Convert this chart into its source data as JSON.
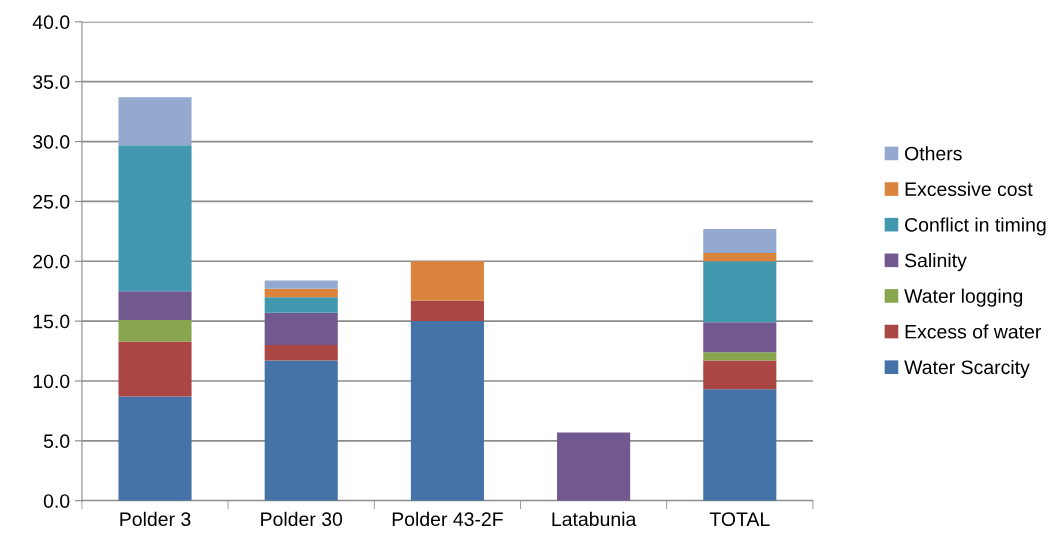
{
  "chart_data": {
    "type": "bar",
    "stacked": true,
    "categories": [
      "Polder 3",
      "Polder 30",
      "Polder 43-2F",
      "Latabunia",
      "TOTAL"
    ],
    "series": [
      {
        "name": "Water Scarcity",
        "color": "#4572a7",
        "values": [
          8.7,
          11.7,
          15.0,
          0,
          9.3
        ]
      },
      {
        "name": "Excess of water",
        "color": "#aa4643",
        "values": [
          4.6,
          1.3,
          1.7,
          0,
          2.4
        ]
      },
      {
        "name": "Water logging",
        "color": "#89a54e",
        "values": [
          1.8,
          0,
          0,
          0,
          0.7
        ]
      },
      {
        "name": "Salinity",
        "color": "#71588f",
        "values": [
          2.4,
          2.7,
          0,
          5.7,
          2.5
        ]
      },
      {
        "name": "Conflict in timing",
        "color": "#4198af",
        "values": [
          12.2,
          1.3,
          0,
          0,
          5.1
        ]
      },
      {
        "name": "Excessive cost",
        "color": "#db843d",
        "values": [
          0,
          0.7,
          3.3,
          0,
          0.7
        ]
      },
      {
        "name": "Others",
        "color": "#93a9cf",
        "values": [
          4.0,
          0.7,
          0,
          0,
          2.0
        ]
      }
    ],
    "ylim": [
      0,
      40
    ],
    "yticks": [
      {
        "value": 0,
        "label": "0.0"
      },
      {
        "value": 5,
        "label": "5.0"
      },
      {
        "value": 10,
        "label": "10.0"
      },
      {
        "value": 15,
        "label": "15.0"
      },
      {
        "value": 20,
        "label": "20.0"
      },
      {
        "value": 25,
        "label": "25.0"
      },
      {
        "value": 30,
        "label": "30.0"
      },
      {
        "value": 35,
        "label": "35.0"
      },
      {
        "value": 40,
        "label": "40.0"
      }
    ],
    "grid": "y",
    "legend": "right"
  }
}
